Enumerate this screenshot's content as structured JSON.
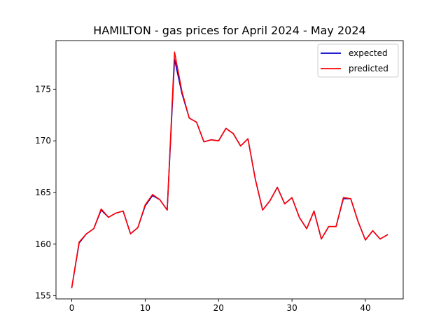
{
  "chart_data": {
    "type": "line",
    "title": "HAMILTON - gas prices for April 2024 - May 2024",
    "xlabel": "",
    "ylabel": "",
    "xlim": [
      -2.15,
      45.15
    ],
    "ylim": [
      154.7,
      179.7
    ],
    "xticks": [
      0,
      10,
      20,
      30,
      40
    ],
    "yticks": [
      155,
      160,
      165,
      170,
      175
    ],
    "grid": false,
    "legend_position": "top-right",
    "x": [
      0,
      1,
      2,
      3,
      4,
      5,
      6,
      7,
      8,
      9,
      10,
      11,
      12,
      13,
      14,
      15,
      16,
      17,
      18,
      19,
      20,
      21,
      22,
      23,
      24,
      25,
      26,
      27,
      28,
      29,
      30,
      31,
      32,
      33,
      34,
      35,
      36,
      37,
      38,
      39,
      40,
      41,
      42,
      43
    ],
    "series": [
      {
        "name": "expected",
        "color": "#0000cc",
        "values": [
          155.8,
          160.1,
          161.0,
          161.5,
          163.3,
          162.6,
          163.0,
          163.2,
          161.0,
          161.6,
          163.7,
          164.7,
          164.3,
          163.3,
          177.9,
          174.6,
          172.2,
          171.8,
          169.9,
          170.1,
          170.0,
          171.2,
          170.7,
          169.5,
          170.2,
          166.3,
          163.3,
          164.2,
          165.5,
          163.9,
          164.5,
          162.6,
          161.5,
          163.2,
          160.5,
          161.7,
          161.7,
          164.4,
          164.4,
          162.2,
          160.4,
          161.3,
          160.5,
          160.9
        ]
      },
      {
        "name": "predicted",
        "color": "#ff0000",
        "values": [
          155.8,
          160.2,
          161.0,
          161.5,
          163.4,
          162.6,
          163.0,
          163.2,
          161.0,
          161.6,
          163.8,
          164.8,
          164.3,
          163.3,
          178.6,
          174.8,
          172.2,
          171.8,
          169.9,
          170.1,
          170.0,
          171.2,
          170.7,
          169.5,
          170.2,
          166.3,
          163.3,
          164.2,
          165.5,
          163.9,
          164.5,
          162.6,
          161.5,
          163.2,
          160.5,
          161.7,
          161.7,
          164.5,
          164.4,
          162.2,
          160.4,
          161.3,
          160.5,
          160.9
        ]
      }
    ]
  }
}
